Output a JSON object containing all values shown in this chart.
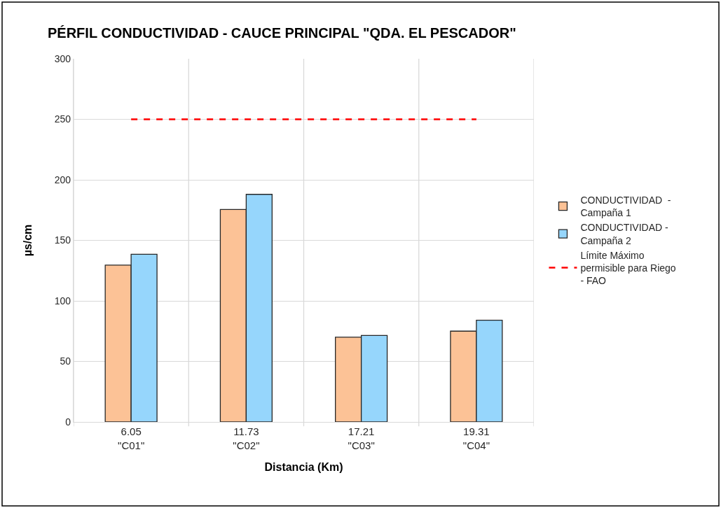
{
  "chart_data": {
    "type": "bar",
    "title": "PÉRFIL CONDUCTIVIDAD - CAUCE PRINCIPAL \"QDA. EL PESCADOR\"",
    "xlabel": "Distancia (Km)",
    "ylabel": "µs/cm",
    "categories": [
      "6.05\n\"C01\"",
      "11.73\n\"C02\"",
      "17.21\n\"C03\"",
      "19.31\n\"C04\""
    ],
    "series": [
      {
        "name": "CONDUCTIVIDAD  - Campaña 1",
        "color": "#fcc296",
        "values": [
          129.5,
          175.5,
          70,
          75
        ]
      },
      {
        "name": "CONDUCTIVIDAD - Campaña 2",
        "color": "#96d6fc",
        "values": [
          138.5,
          188,
          71.5,
          84
        ]
      },
      {
        "name": "Límite Máximo permisible para Riego - FAO",
        "type": "line",
        "color": "#ff0000",
        "line_style": "dashed",
        "marker": "none",
        "values": [
          250,
          250,
          250,
          250
        ]
      }
    ],
    "ylim": [
      0,
      300
    ],
    "yticks": [
      0,
      50,
      100,
      150,
      200,
      250,
      300
    ],
    "grid": true,
    "legend": "right"
  }
}
